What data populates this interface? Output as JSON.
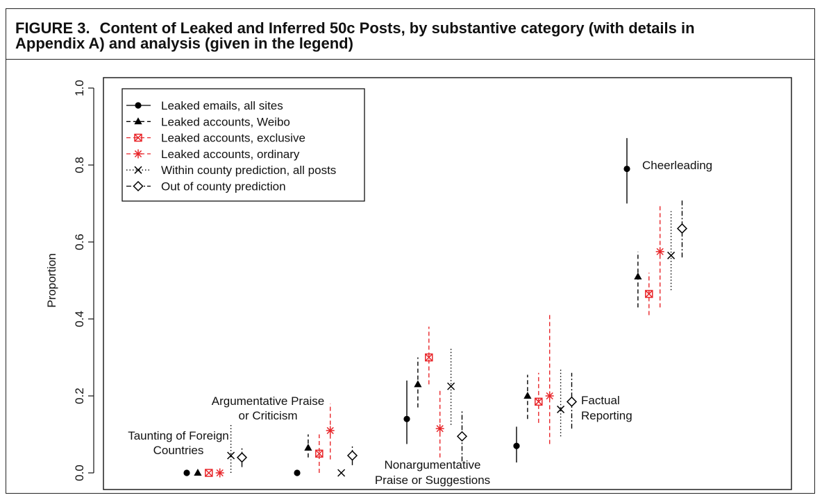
{
  "figure": {
    "number": "FIGURE 3.",
    "title_line1": "Content of Leaked and Inferred 50c Posts, by substantive category (with details in",
    "title_line2": "Appendix A) and analysis (given in the legend)"
  },
  "chart_data": {
    "type": "scatter",
    "ylabel": "Proportion",
    "xlabel": "",
    "ylim": [
      0,
      1
    ],
    "yticks": [
      "0.0",
      "0.2",
      "0.4",
      "0.6",
      "0.8",
      "1.0"
    ],
    "grid": false,
    "legend_position": "top-left",
    "colors": {
      "black": "#000000",
      "red": "#e8262a"
    },
    "categories": [
      {
        "lines": [
          "Taunting of Foreign",
          "Countries"
        ]
      },
      {
        "lines": [
          "Argumentative Praise",
          "or Criticism"
        ]
      },
      {
        "lines": [
          "Nonargumentative",
          "Praise or Suggestions"
        ]
      },
      {
        "lines": [
          "Factual",
          "Reporting"
        ]
      },
      {
        "lines": [
          "Cheerleading"
        ]
      }
    ],
    "series": [
      {
        "name": "Leaked emails, all sites",
        "marker": "circle",
        "color": "#000000",
        "line": "solid",
        "values": [
          {
            "y": 0.0
          },
          {
            "y": 0.0
          },
          {
            "y": 0.14,
            "lo": 0.075,
            "hi": 0.24
          },
          {
            "y": 0.07,
            "lo": 0.027,
            "hi": 0.12
          },
          {
            "y": 0.79,
            "lo": 0.7,
            "hi": 0.87
          }
        ]
      },
      {
        "name": "Leaked accounts, Weibo",
        "marker": "triangle",
        "color": "#000000",
        "line": "dashed",
        "values": [
          {
            "y": 0.0
          },
          {
            "y": 0.065,
            "lo": 0.04,
            "hi": 0.1
          },
          {
            "y": 0.23,
            "lo": 0.17,
            "hi": 0.3
          },
          {
            "y": 0.2,
            "lo": 0.14,
            "hi": 0.255
          },
          {
            "y": 0.51,
            "lo": 0.43,
            "hi": 0.575
          }
        ]
      },
      {
        "name": "Leaked accounts, exclusive",
        "marker": "boxx",
        "color": "#e8262a",
        "line": "dashed",
        "values": [
          {
            "y": 0.0
          },
          {
            "y": 0.05,
            "lo": 0.0,
            "hi": 0.1
          },
          {
            "y": 0.3,
            "lo": 0.23,
            "hi": 0.38
          },
          {
            "y": 0.185,
            "lo": 0.13,
            "hi": 0.26
          },
          {
            "y": 0.465,
            "lo": 0.41,
            "hi": 0.52
          }
        ]
      },
      {
        "name": "Leaked accounts, ordinary",
        "marker": "star",
        "color": "#e8262a",
        "line": "dashed",
        "values": [
          {
            "y": 0.0
          },
          {
            "y": 0.11,
            "lo": 0.035,
            "hi": 0.18
          },
          {
            "y": 0.115,
            "lo": 0.04,
            "hi": 0.22
          },
          {
            "y": 0.2,
            "lo": 0.075,
            "hi": 0.415
          },
          {
            "y": 0.575,
            "lo": 0.43,
            "hi": 0.7
          }
        ]
      },
      {
        "name": "Within county prediction, all posts",
        "marker": "x",
        "color": "#000000",
        "line": "dotted",
        "values": [
          {
            "y": 0.045,
            "lo": 0.0,
            "hi": 0.125
          },
          {
            "y": 0.0
          },
          {
            "y": 0.225,
            "lo": 0.125,
            "hi": 0.325
          },
          {
            "y": 0.165,
            "lo": 0.095,
            "hi": 0.27
          },
          {
            "y": 0.565,
            "lo": 0.475,
            "hi": 0.68
          }
        ]
      },
      {
        "name": "Out of county prediction",
        "marker": "diamond",
        "color": "#000000",
        "line": "dashdot",
        "values": [
          {
            "y": 0.04,
            "lo": 0.015,
            "hi": 0.065
          },
          {
            "y": 0.045,
            "lo": 0.02,
            "hi": 0.07
          },
          {
            "y": 0.095,
            "lo": 0.03,
            "hi": 0.16
          },
          {
            "y": 0.185,
            "lo": 0.115,
            "hi": 0.26
          },
          {
            "y": 0.635,
            "lo": 0.56,
            "hi": 0.71
          }
        ]
      }
    ]
  }
}
